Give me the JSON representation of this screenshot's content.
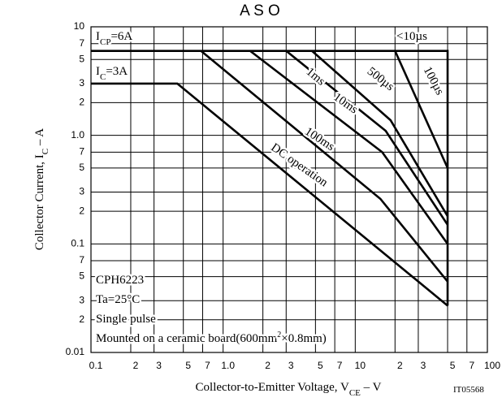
{
  "chart_data": {
    "type": "line",
    "title": "A S O",
    "xlabel": {
      "text": "Collector-to-Emitter Voltage, V",
      "sub": "CE",
      "after": " – V"
    },
    "ylabel": {
      "text": "Collector Current, I",
      "sub": "C",
      "after": " – A"
    },
    "log_x": true,
    "log_y": true,
    "grid": true,
    "xlim": [
      0.1,
      100
    ],
    "ylim": [
      0.01,
      10
    ],
    "xticks": [
      0.1,
      {
        "value": 0.2,
        "label": "2"
      },
      {
        "value": 0.3,
        "label": "3"
      },
      {
        "value": 0.5,
        "label": "5"
      },
      {
        "value": 0.7,
        "label": "7"
      },
      {
        "value": 1,
        "label": "1.0"
      },
      2,
      3,
      5,
      7,
      10,
      {
        "value": 20,
        "label": "2"
      },
      {
        "value": 30,
        "label": "3"
      },
      {
        "value": 50,
        "label": "5"
      },
      {
        "value": 70,
        "label": "7"
      },
      100
    ],
    "yticks": [
      0.01,
      {
        "value": 0.02,
        "label": "2"
      },
      {
        "value": 0.03,
        "label": "3"
      },
      {
        "value": 0.05,
        "label": "5"
      },
      {
        "value": 0.07,
        "label": "7"
      },
      0.1,
      {
        "value": 0.2,
        "label": "2"
      },
      {
        "value": 0.3,
        "label": "3"
      },
      {
        "value": 0.5,
        "label": "5"
      },
      {
        "value": 0.7,
        "label": "7"
      },
      {
        "value": 1,
        "label": "1.0"
      },
      2,
      3,
      5,
      7,
      10
    ],
    "series": [
      {
        "color": "#000000",
        "x": [
          0.1,
          50,
          50
        ],
        "values": [
          6,
          6,
          0.027
        ]
      },
      {
        "name": "100µs",
        "color": "#000000",
        "x": [
          20,
          50
        ],
        "values": [
          6,
          0.5
        ]
      },
      {
        "name": "500µs",
        "color": "#000000",
        "x": [
          4.7,
          18.5,
          50
        ],
        "values": [
          6,
          1.38,
          0.18
        ]
      },
      {
        "name": "1ms",
        "color": "#000000",
        "x": [
          3,
          17,
          50
        ],
        "values": [
          6,
          1.1,
          0.15
        ]
      },
      {
        "name": "10ms",
        "color": "#000000",
        "x": [
          1.6,
          16,
          50
        ],
        "values": [
          6,
          0.7,
          0.1
        ]
      },
      {
        "name": "100ms",
        "color": "#000000",
        "x": [
          0.68,
          15.5,
          50
        ],
        "values": [
          6,
          0.26,
          0.045
        ]
      },
      {
        "name": "DC operation",
        "color": "#000000",
        "x": [
          0.1,
          0.45,
          50
        ],
        "values": [
          3,
          3,
          0.027
        ]
      }
    ],
    "annotations": [
      {
        "text": "I",
        "sub": "CP",
        "after": "=6A"
      },
      {
        "text": "I",
        "sub": "C",
        "after": "=3A"
      },
      {
        "text": "<10µs"
      },
      {
        "text": "CPH6223"
      },
      {
        "text": "Ta=25°C"
      },
      {
        "text": "Single pulse"
      },
      {
        "text": "Mounted on a ceramic board(600mm",
        "sup": "2",
        "after": "×0.8mm)"
      },
      {
        "text": "IT05568"
      }
    ]
  }
}
